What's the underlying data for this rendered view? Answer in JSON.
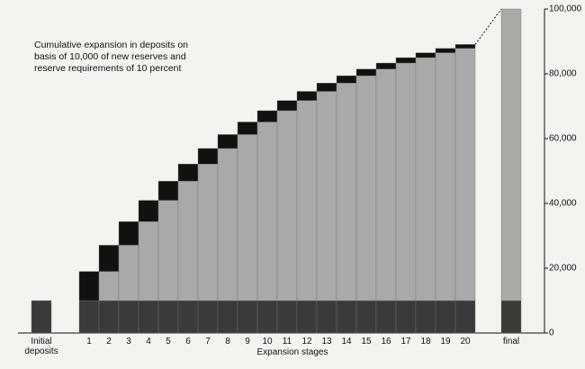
{
  "chart_data": {
    "type": "stacked-bar",
    "annotation": "Cumulative expansion in deposits on basis of 10,000 of new reserves and reserve requirements of 10 percent",
    "x_label": "Expansion stages",
    "categories": [
      "Initial deposits",
      "1",
      "2",
      "3",
      "4",
      "5",
      "6",
      "7",
      "8",
      "9",
      "10",
      "11",
      "12",
      "13",
      "14",
      "15",
      "16",
      "17",
      "18",
      "19",
      "20",
      "final"
    ],
    "series": [
      {
        "color": "#3a3a3a",
        "values": [
          10000,
          10000,
          10000,
          10000,
          10000,
          10000,
          10000,
          10000,
          10000,
          10000,
          10000,
          10000,
          10000,
          10000,
          10000,
          10000,
          10000,
          10000,
          10000,
          10000,
          10000,
          10000
        ]
      },
      {
        "color": "#a9a9a9",
        "values": [
          0,
          0,
          9000,
          17100,
          24390,
          30951,
          36856,
          42170,
          46953,
          51258,
          55132,
          58619,
          61757,
          64581,
          67123,
          69411,
          71470,
          73323,
          74991,
          76491,
          77842,
          90000
        ]
      },
      {
        "color": "#111111",
        "values": [
          0,
          9000,
          8100,
          7290,
          6561,
          5905,
          5314,
          4783,
          4305,
          3874,
          3487,
          3138,
          2824,
          2542,
          2288,
          2059,
          1853,
          1668,
          1501,
          1351,
          1216,
          0
        ]
      }
    ],
    "ylim": [
      0,
      100000
    ],
    "yticks": [
      0,
      {
        "value": 20000,
        "label": "20,000"
      },
      {
        "value": 40000,
        "label": "40,000"
      },
      {
        "value": 60000,
        "label": "60,000"
      },
      {
        "value": 80000,
        "label": "80,000"
      },
      {
        "value": 100000,
        "label": "100,000"
      }
    ]
  }
}
